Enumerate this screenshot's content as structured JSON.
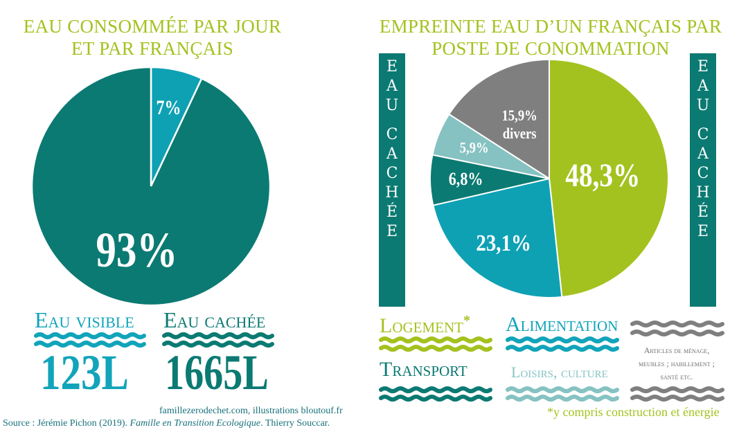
{
  "left": {
    "title_lines": [
      "EAU CONSOMMÉE PAR JOUR",
      "ET PAR FRANÇAIS"
    ],
    "chart_data": {
      "type": "pie",
      "labels": [
        "Eau visible",
        "Eau cachée"
      ],
      "values": [
        7,
        93
      ],
      "value_labels": [
        "7%",
        "93%"
      ],
      "colors": [
        "#0ea1b4",
        "#0b7a72"
      ]
    },
    "legend": [
      {
        "label": "Eau visible",
        "amount": "123L",
        "color": "#11a4ba"
      },
      {
        "label": "Eau cachée",
        "amount": "1665L",
        "color": "#0b7a72"
      }
    ]
  },
  "right": {
    "title_lines": [
      "EMPREINTE EAU D’UN FRANÇAIS PAR",
      "POSTE DE CONOMMATION"
    ],
    "side_banner_chars": [
      "E",
      "A",
      "U",
      "",
      "C",
      "A",
      "C",
      "H",
      "É",
      "E"
    ],
    "chart_data": {
      "type": "pie",
      "labels": [
        "Logement",
        "Alimentation",
        "Transport",
        "Loisirs, culture",
        "Articles de ménage, meubles ; habillement ; santé etc."
      ],
      "values": [
        48.3,
        23.1,
        6.8,
        5.9,
        15.9
      ],
      "value_labels": [
        "48,3%",
        "23,1%",
        "6,8%",
        "5,9%",
        "15,9%"
      ],
      "extra_label": "divers",
      "colors": [
        "#a3c21f",
        "#0ea1b4",
        "#0b7a72",
        "#86c2c2",
        "#7f7f7f"
      ]
    },
    "legend": [
      {
        "label": "Logement",
        "mark": "*",
        "color": "#a3c21f"
      },
      {
        "label": "Alimentation",
        "color": "#11a4ba"
      },
      {
        "label": "Articles de ménage, meubles ; habillement ; santé etc.",
        "color": "#7f7f7f"
      },
      {
        "label": "Transport",
        "color": "#0b7a72"
      },
      {
        "label": "Loisirs, culture",
        "color": "#86c2c2"
      }
    ],
    "footnote": "*y compris construction et énergie"
  },
  "credits": {
    "line1": "famillezerodechet.com, illustrations bloutouf.fr",
    "line2_prefix": "Source : Jérémie Pichon (2019). ",
    "line2_italic": "Famille en Transition Ecologique",
    "line2_suffix": ". Thierry Souccar."
  }
}
